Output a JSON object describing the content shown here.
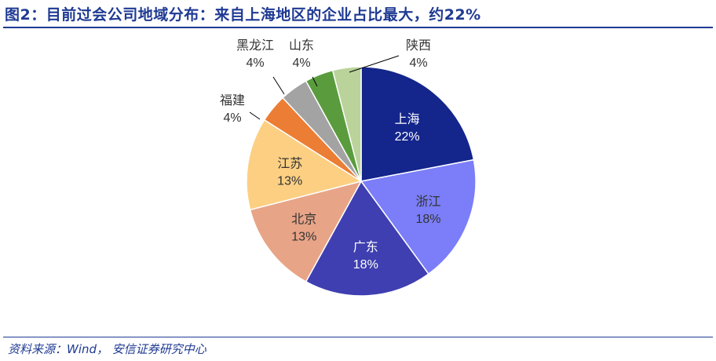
{
  "title": "图2：目前过会公司地域分布：来自上海地区的企业占比最大，约22%",
  "source": "资料来源：Wind，  安信证券研究中心",
  "chart_data": {
    "type": "pie",
    "title": "",
    "slices": [
      {
        "label": "上海",
        "value": 22,
        "pct": "22%",
        "color": "#14258c",
        "text_color": "#ffffff",
        "inside": true
      },
      {
        "label": "浙江",
        "value": 18,
        "pct": "18%",
        "color": "#7b7ef8",
        "text_color": "#333333",
        "inside": true
      },
      {
        "label": "广东",
        "value": 18,
        "pct": "18%",
        "color": "#3f3fb1",
        "text_color": "#ffffff",
        "inside": true
      },
      {
        "label": "北京",
        "value": 13,
        "pct": "13%",
        "color": "#e8a487",
        "text_color": "#333333",
        "inside": true
      },
      {
        "label": "江苏",
        "value": 13,
        "pct": "13%",
        "color": "#fccf83",
        "text_color": "#333333",
        "inside": true
      },
      {
        "label": "福建",
        "value": 4,
        "pct": "4%",
        "color": "#ec7d34",
        "text_color": "#333333",
        "inside": false
      },
      {
        "label": "黑龙江",
        "value": 4,
        "pct": "4%",
        "color": "#a3a3a3",
        "text_color": "#333333",
        "inside": false
      },
      {
        "label": "山东",
        "value": 4,
        "pct": "4%",
        "color": "#5a9c3d",
        "text_color": "#333333",
        "inside": false
      },
      {
        "label": "陕西",
        "value": 4,
        "pct": "4%",
        "color": "#b9d39b",
        "text_color": "#333333",
        "inside": false
      }
    ]
  }
}
